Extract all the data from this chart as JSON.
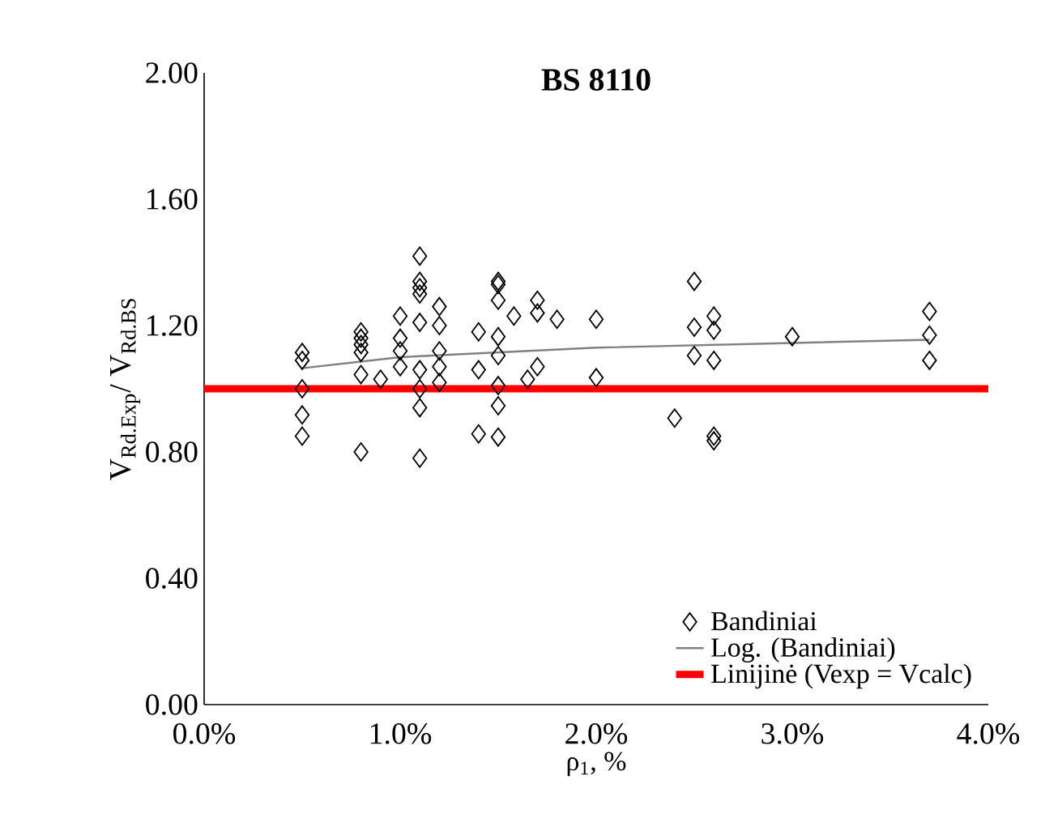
{
  "chart_data": {
    "type": "scatter",
    "title": "BS 8110",
    "xlabel": "ρ$_{1}$, %",
    "ylabel": "V$_{Rd.Exp}$/ V$_{Rd.BS}$",
    "xlim": [
      0,
      4
    ],
    "ylim": [
      0,
      2
    ],
    "xticks": [
      {
        "value": 0,
        "label": "0.0%"
      },
      {
        "value": 1,
        "label": "1.0%"
      },
      {
        "value": 2,
        "label": "2.0%"
      },
      {
        "value": 3,
        "label": "3.0%"
      },
      {
        "value": 4,
        "label": "4.0%"
      }
    ],
    "yticks": [
      {
        "value": 0,
        "label": "0.00"
      },
      {
        "value": 0.4,
        "label": "0.40"
      },
      {
        "value": 0.8,
        "label": "0.80"
      },
      {
        "value": 1.2,
        "label": "1.20"
      },
      {
        "value": 1.6,
        "label": "1.60"
      },
      {
        "value": 2,
        "label": "2.00"
      }
    ],
    "grid": false,
    "legend": "bottom right",
    "marker": "diamond",
    "series": [
      {
        "name": "Bandiniai",
        "color": "#000000",
        "x": [
          0.5,
          0.5,
          0.5,
          0.5,
          0.5,
          0.8,
          0.8,
          0.8,
          0.8,
          0.8,
          0.8,
          0.9,
          1.0,
          1.0,
          1.0,
          1.0,
          1.1,
          1.1,
          1.1,
          1.1,
          1.1,
          1.1,
          1.1,
          1.1,
          1.1,
          1.2,
          1.2,
          1.2,
          1.2,
          1.2,
          1.4,
          1.4,
          1.4,
          1.5,
          1.5,
          1.5,
          1.5,
          1.5,
          1.5,
          1.5,
          1.5,
          1.58,
          1.65,
          1.7,
          1.7,
          1.7,
          1.8,
          2.0,
          2.0,
          2.4,
          2.5,
          2.5,
          2.5,
          2.6,
          2.6,
          2.6,
          2.6,
          2.6,
          3.0,
          3.7,
          3.7,
          3.7
        ],
        "values": [
          1.115,
          1.09,
          1.0,
          0.917,
          0.85,
          1.18,
          1.16,
          1.14,
          1.115,
          1.045,
          0.8,
          1.03,
          1.23,
          1.16,
          1.12,
          1.07,
          1.42,
          1.34,
          1.32,
          1.3,
          1.21,
          1.06,
          1.0,
          0.94,
          0.78,
          1.26,
          1.2,
          1.12,
          1.07,
          1.02,
          1.18,
          1.06,
          0.857,
          1.34,
          1.33,
          1.28,
          1.165,
          1.105,
          1.01,
          0.946,
          0.847,
          1.23,
          1.03,
          1.28,
          1.24,
          1.07,
          1.22,
          1.22,
          1.035,
          0.907,
          1.34,
          1.195,
          1.105,
          1.23,
          1.185,
          1.09,
          0.85,
          0.835,
          1.165,
          1.245,
          1.17,
          1.09
        ]
      },
      {
        "name": "Log. (Bandiniai)",
        "type": "line",
        "color": "#808080",
        "marker": "none",
        "line_style": "solid",
        "x": [
          0.5,
          1.0,
          2.0,
          3.0,
          3.7
        ],
        "values": [
          1.065,
          1.1,
          1.13,
          1.145,
          1.155
        ]
      }
    ],
    "ref_lines": [
      {
        "axis": "y",
        "value": 1.0,
        "label": "Linijinė (Vexp = Vcalc)",
        "color": "#ff0000",
        "line_style": "solid"
      }
    ]
  }
}
